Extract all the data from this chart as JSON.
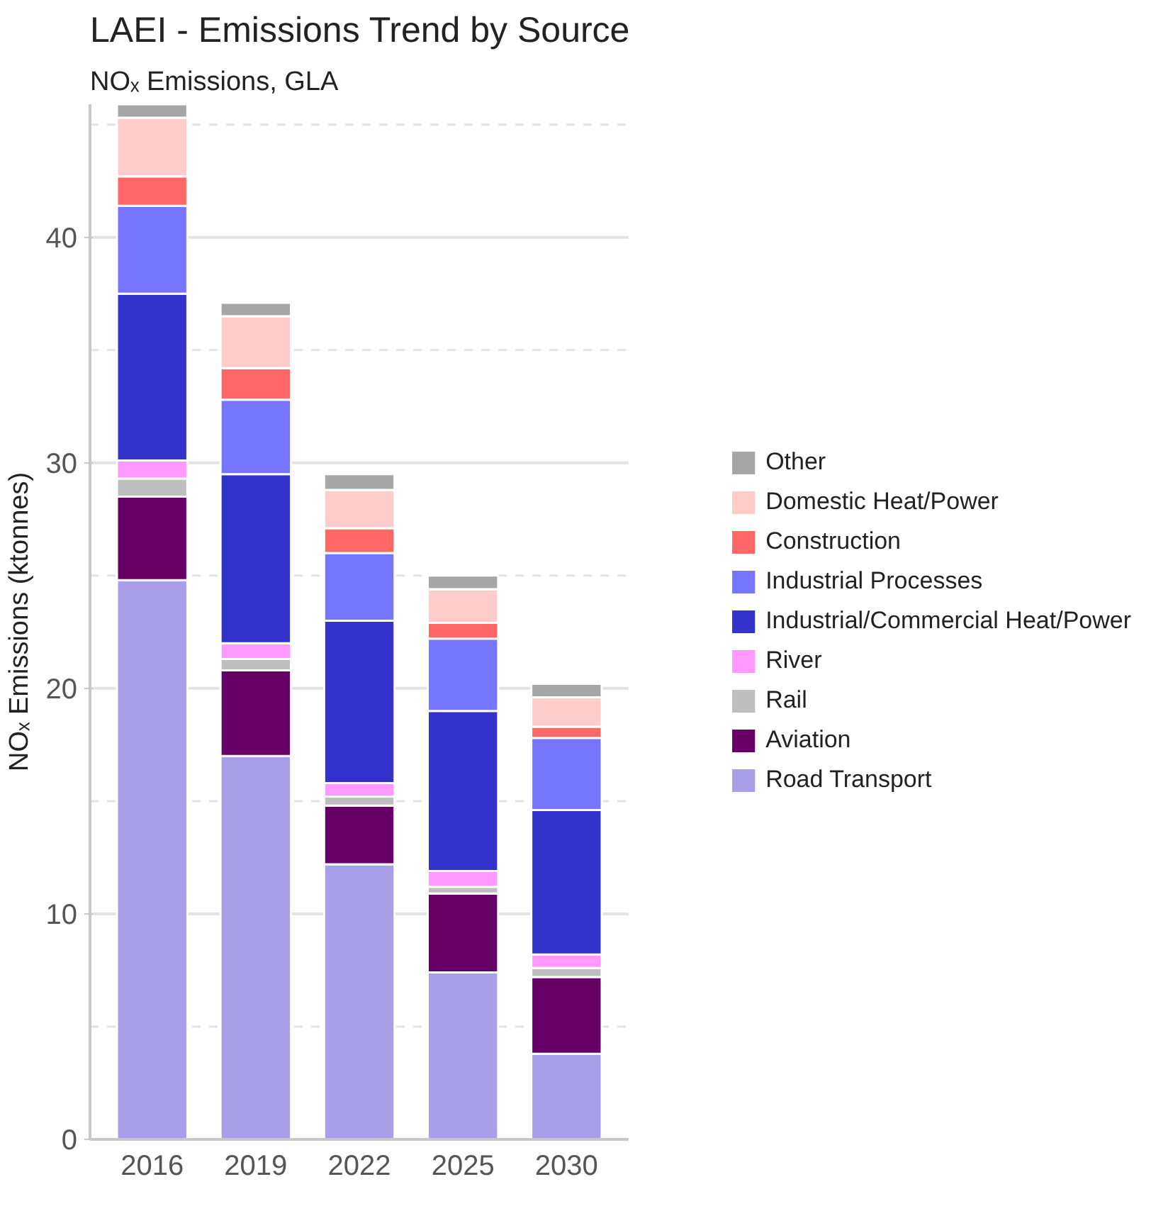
{
  "chart_data": {
    "type": "bar",
    "title": "LAEI - Emissions Trend by Source",
    "subtitle": "NOₓ Emissions, GLA",
    "ylabel": "NOₓ Emissions (ktonnes)",
    "categories": [
      "2016",
      "2019",
      "2022",
      "2025",
      "2030"
    ],
    "stacked": true,
    "ylim": [
      0,
      45.9
    ],
    "yticks": [
      0,
      10,
      20,
      30,
      40
    ],
    "grid": "y",
    "legend": "right",
    "series": [
      {
        "name": "Road Transport",
        "color": "#a99ee8",
        "values": [
          24.8,
          17.0,
          12.2,
          7.4,
          3.8
        ]
      },
      {
        "name": "Aviation",
        "color": "#660066",
        "values": [
          3.7,
          3.8,
          2.6,
          3.5,
          3.4
        ]
      },
      {
        "name": "Rail",
        "color": "#bebebe",
        "values": [
          0.8,
          0.5,
          0.4,
          0.3,
          0.4
        ]
      },
      {
        "name": "River",
        "color": "#ff99ff",
        "values": [
          0.8,
          0.7,
          0.6,
          0.7,
          0.6
        ]
      },
      {
        "name": "Industrial/Commercial Heat/Power",
        "color": "#3333cc",
        "values": [
          7.4,
          7.5,
          7.2,
          7.1,
          6.4
        ]
      },
      {
        "name": "Industrial Processes",
        "color": "#7575ff",
        "values": [
          3.9,
          3.3,
          3.0,
          3.2,
          3.2
        ]
      },
      {
        "name": "Construction",
        "color": "#ff6666",
        "values": [
          1.3,
          1.4,
          1.1,
          0.7,
          0.5
        ]
      },
      {
        "name": "Domestic Heat/Power",
        "color": "#ffcccc",
        "values": [
          2.6,
          2.3,
          1.7,
          1.5,
          1.3
        ]
      },
      {
        "name": "Other",
        "color": "#a6a6a6",
        "values": [
          0.6,
          0.6,
          0.7,
          0.6,
          0.6
        ]
      }
    ]
  }
}
